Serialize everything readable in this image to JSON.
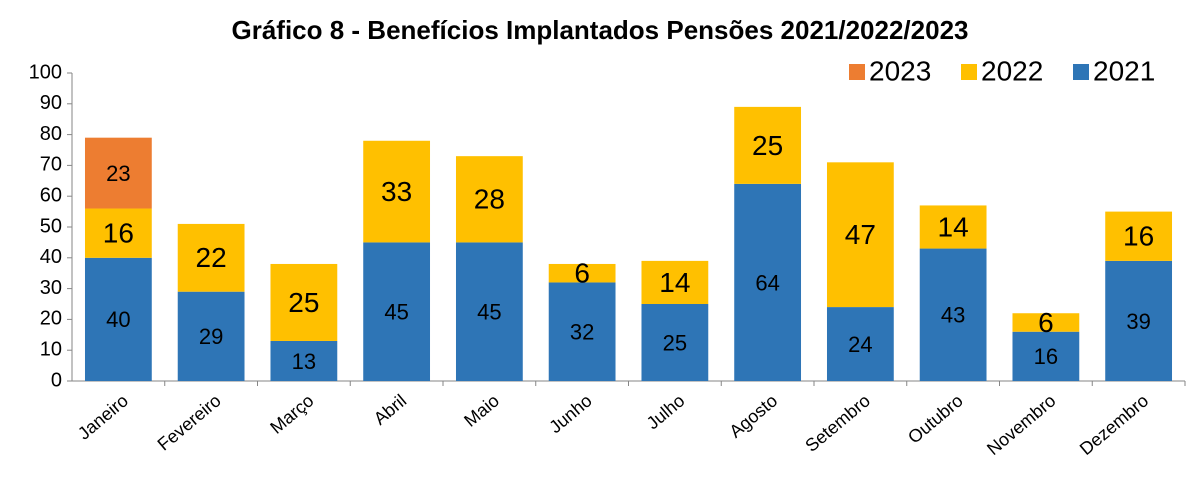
{
  "chart_data": {
    "type": "stacked_bar",
    "title": "Gráfico 8 - Benefícios Implantados Pensões 2021/2022/2023",
    "categories": [
      "Janeiro",
      "Fevereiro",
      "Março",
      "Abril",
      "Maio",
      "Junho",
      "Julho",
      "Agosto",
      "Setembro",
      "Outubro",
      "Novembro",
      "Dezembro"
    ],
    "series": [
      {
        "name": "2021",
        "color": "#2e75b6",
        "values": [
          40,
          29,
          13,
          45,
          45,
          32,
          25,
          64,
          24,
          43,
          16,
          39
        ]
      },
      {
        "name": "2022",
        "color": "#ffc000",
        "values": [
          16,
          22,
          25,
          33,
          28,
          6,
          14,
          25,
          47,
          14,
          6,
          16
        ]
      },
      {
        "name": "2023",
        "color": "#ed7d31",
        "values": [
          23,
          null,
          null,
          null,
          null,
          null,
          null,
          null,
          null,
          null,
          null,
          null
        ]
      }
    ],
    "ylim": [
      0,
      100
    ],
    "yticks": [
      0,
      10,
      20,
      30,
      40,
      50,
      60,
      70,
      80,
      90,
      100
    ],
    "grid": false,
    "legend": "top-right"
  }
}
